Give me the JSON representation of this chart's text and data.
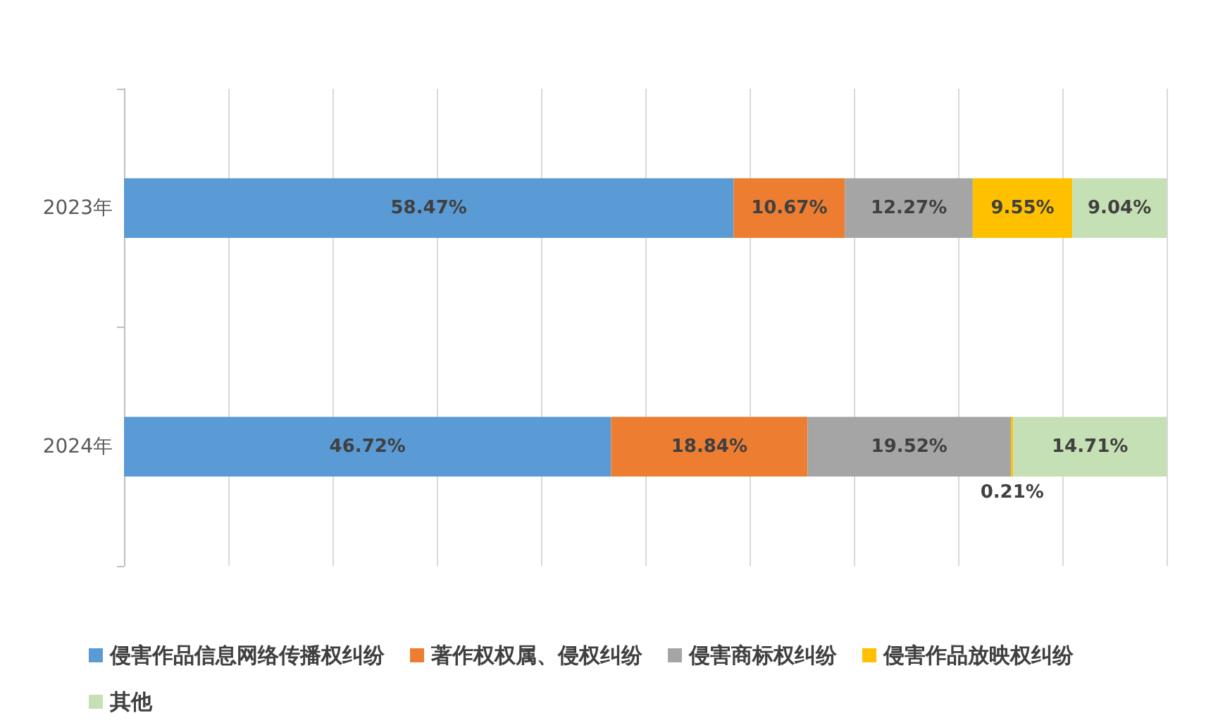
{
  "chart_data": {
    "type": "bar",
    "orientation": "horizontal",
    "stacked": true,
    "categories": [
      "2023年",
      "2024年"
    ],
    "xlim": [
      0,
      100
    ],
    "xticks": [
      {
        "value": 0,
        "label": null
      },
      {
        "value": 10,
        "label": null
      },
      {
        "value": 20,
        "label": null
      },
      {
        "value": 30,
        "label": null
      },
      {
        "value": 40,
        "label": null
      },
      {
        "value": 50,
        "label": null
      },
      {
        "value": 60,
        "label": null
      },
      {
        "value": 70,
        "label": null
      },
      {
        "value": 80,
        "label": null
      },
      {
        "value": 90,
        "label": null
      },
      {
        "value": 100,
        "label": null
      }
    ],
    "tick_labels": "y",
    "grid": "x",
    "legend": "bottom",
    "series": [
      {
        "name": "侵害作品信息网络传播权纠纷",
        "color": "#5b9bd5",
        "values": [
          58.47,
          46.72
        ],
        "value_labels": [
          "58.47%",
          "46.72%"
        ]
      },
      {
        "name": "著作权权属、侵权纠纷",
        "color": "#ed7d31",
        "values": [
          10.67,
          18.84
        ],
        "value_labels": [
          "10.67%",
          "18.84%"
        ]
      },
      {
        "name": "侵害商标权纠纷",
        "color": "#a5a5a5",
        "values": [
          12.27,
          19.52
        ],
        "value_labels": [
          "12.27%",
          "19.52%"
        ]
      },
      {
        "name": "侵害作品放映权纠纷",
        "color": "#ffc000",
        "values": [
          9.55,
          0.21
        ],
        "value_labels": [
          "9.55%",
          "0.21%"
        ]
      },
      {
        "name": "其他",
        "color": "#c5e0b4",
        "values": [
          9.04,
          14.71
        ],
        "value_labels": [
          "9.04%",
          "14.71%"
        ]
      }
    ]
  }
}
